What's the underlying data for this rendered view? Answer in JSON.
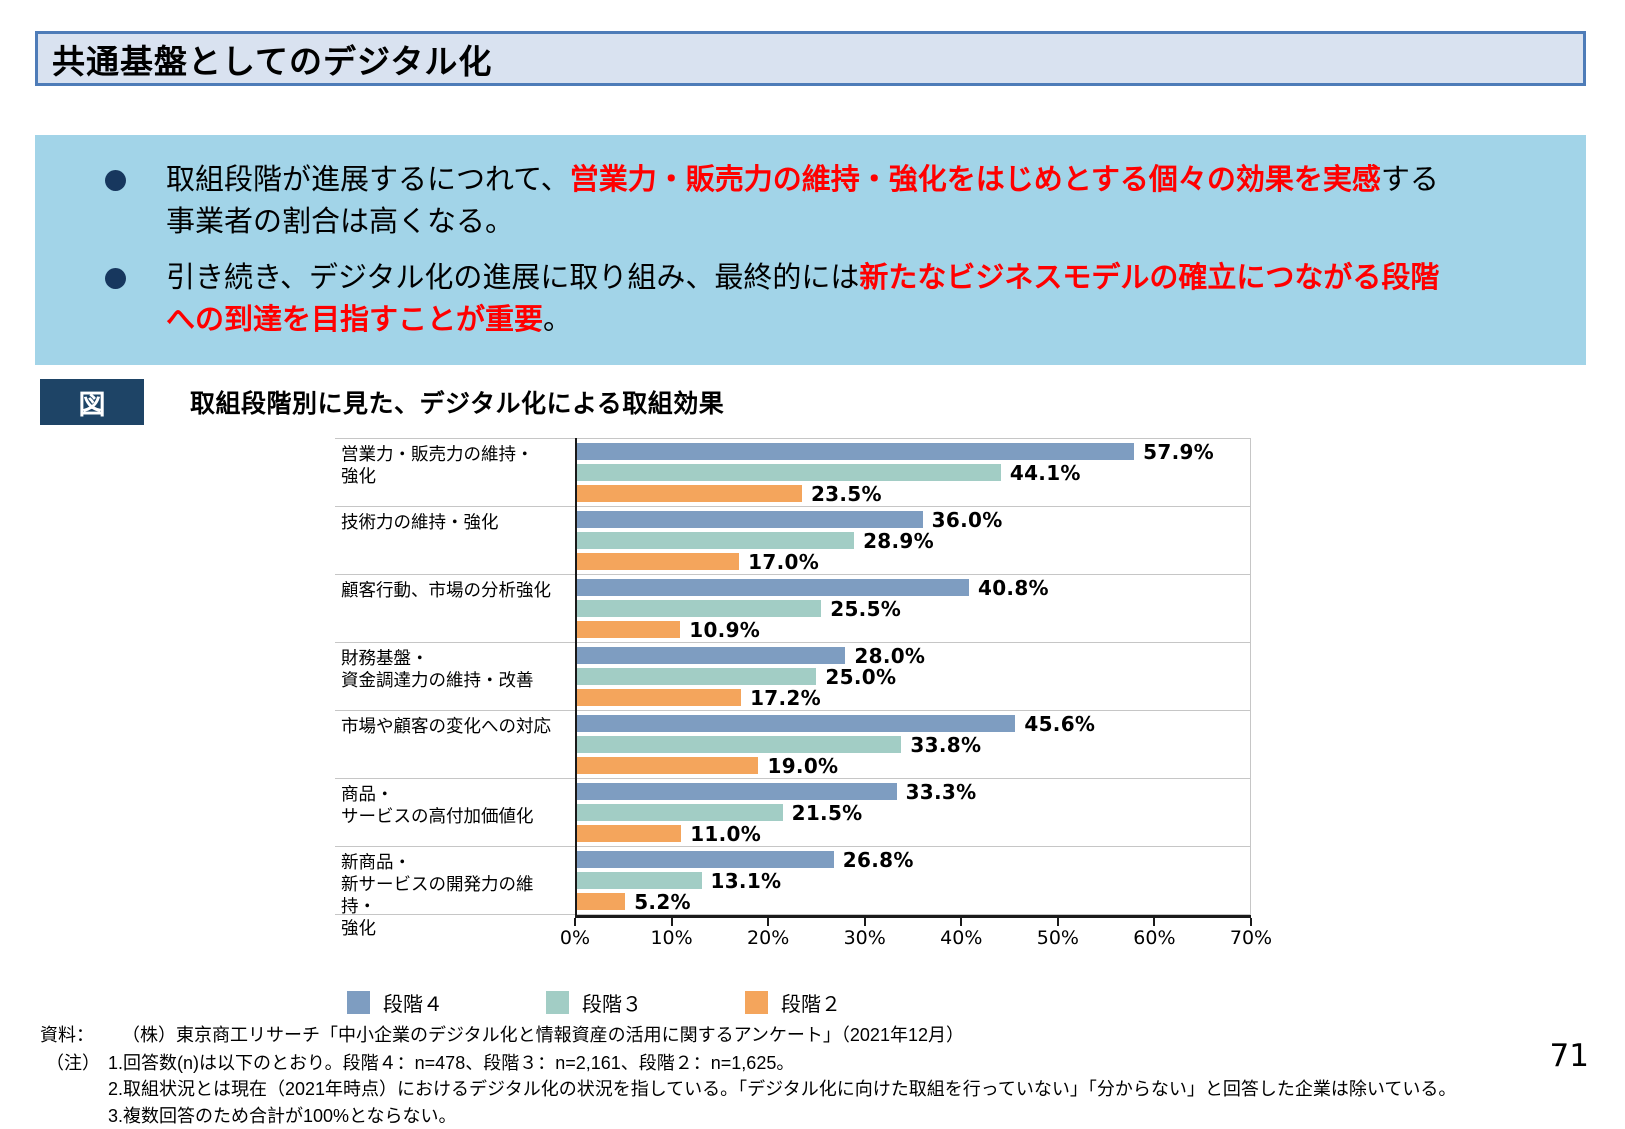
{
  "header": {
    "title": "共通基盤としてのデジタル化"
  },
  "summary": {
    "bullets": [
      {
        "pre": "取組段階が進展するにつれて、",
        "highlight": "営業力・販売力の維持・強化をはじめとする個々の効果を実感",
        "post": "する事業者の割合は高くなる。"
      },
      {
        "pre": "引き続き、デジタル化の進展に取り組み、最終的には",
        "highlight": "新たなビジネスモデルの確立につながる段階への到達を目指すことが重要",
        "post": "。"
      }
    ]
  },
  "figure": {
    "badge_label": "図",
    "title": "取組段階別に見た、デジタル化による取組効果"
  },
  "chart_data": {
    "type": "bar",
    "orientation": "horizontal",
    "title": "取組段階別に見た、デジタル化による取組効果",
    "categories": [
      "営業力・販売力の維持・\n強化",
      "技術力の維持・強化",
      "顧客行動、市場の分析強化",
      "財務基盤・\n資金調達力の維持・改善",
      "市場や顧客の変化への対応",
      "商品・\nサービスの高付加価値化",
      "新商品・\n新サービスの開発力の維持・\n強化"
    ],
    "series": [
      {
        "name": "段階４",
        "color": "#7E9DC1",
        "values": [
          57.9,
          36.0,
          40.8,
          28.0,
          45.6,
          33.3,
          26.8
        ]
      },
      {
        "name": "段階３",
        "color": "#A2CDC5",
        "values": [
          44.1,
          28.9,
          25.5,
          25.0,
          33.8,
          21.5,
          13.1
        ]
      },
      {
        "name": "段階２",
        "color": "#F4A55C",
        "values": [
          23.5,
          17.0,
          10.9,
          17.2,
          19.0,
          11.0,
          5.2
        ]
      }
    ],
    "xlim": [
      0,
      70
    ],
    "x_tick_labels": [
      "0%",
      "10%",
      "20%",
      "30%",
      "40%",
      "50%",
      "60%",
      "70%"
    ],
    "value_labels": true,
    "legend_position": "bottom",
    "grid": "category-separators"
  },
  "footnotes": {
    "source_label": "資料：",
    "source_text": "（株）東京商工リサーチ「中小企業のデジタル化と情報資産の活用に関するアンケート」（2021年12月）",
    "note_label": "（注）",
    "notes": [
      "1.回答数(n)は以下のとおり。段階４：n=478、段階３：n=2,161、段階２：n=1,625。",
      "2.取組状況とは現在（2021年時点）におけるデジタル化の状況を指している。「デジタル化に向けた取組を行っていない」「分からない」と回答した企業は除いている。",
      "3.複数回答のため合計が100%とならない。"
    ]
  },
  "page": {
    "number": "71"
  }
}
